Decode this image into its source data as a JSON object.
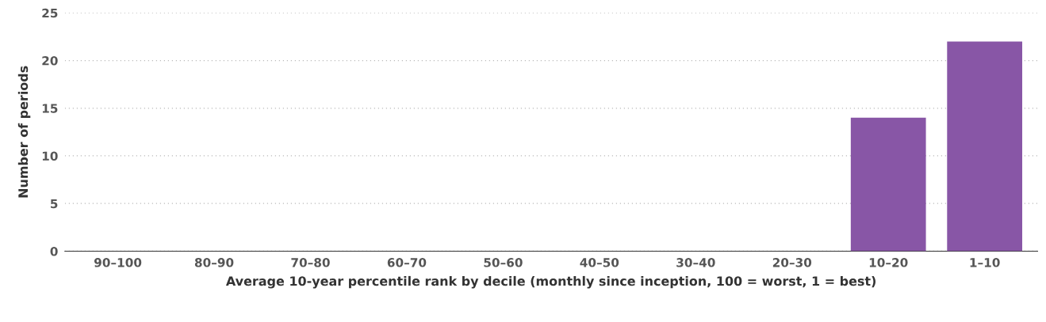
{
  "chart_data": {
    "type": "bar",
    "xlabel": "Average 10-year percentile rank by decile (monthly since inception, 100 = worst, 1 = best)",
    "ylabel": "Number of periods",
    "categories": [
      "90–100",
      "80–90",
      "70–80",
      "60–70",
      "50–60",
      "40–50",
      "30–40",
      "20–30",
      "10–20",
      "1–10"
    ],
    "values": [
      0,
      0,
      0,
      0,
      0,
      0,
      0,
      0,
      14,
      22
    ],
    "color": "#8856a6",
    "ylim": [
      0,
      25
    ],
    "yticks": [
      0,
      5,
      10,
      15,
      20,
      25
    ],
    "grid": "y"
  }
}
